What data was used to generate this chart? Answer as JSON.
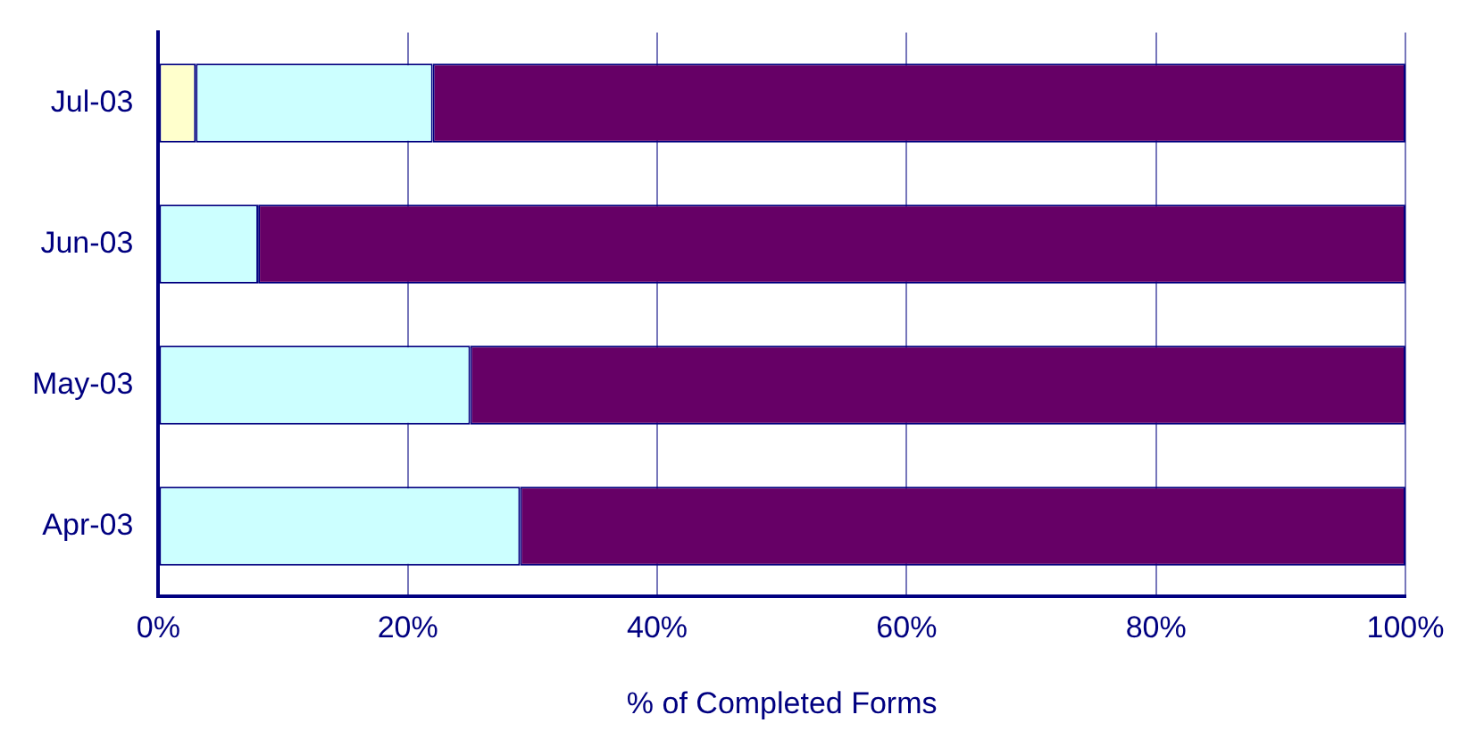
{
  "chart_data": {
    "type": "bar",
    "orientation": "horizontal",
    "stacked": true,
    "xlabel": "% of Completed Forms",
    "categories": [
      "Jul-03",
      "Jun-03",
      "May-03",
      "Apr-03"
    ],
    "series": [
      {
        "color": "#ffffcc",
        "values": [
          3,
          0,
          0,
          0
        ]
      },
      {
        "color": "#ccffff",
        "values": [
          19,
          8,
          25,
          29
        ]
      },
      {
        "color": "#660066",
        "values": [
          78,
          92,
          75,
          71
        ]
      }
    ],
    "xlim": [
      0,
      100
    ],
    "xticks": [
      {
        "value": 0,
        "label": "0%"
      },
      {
        "value": 20,
        "label": "20%"
      },
      {
        "value": 40,
        "label": "40%"
      },
      {
        "value": 60,
        "label": "60%"
      },
      {
        "value": 80,
        "label": "80%"
      },
      {
        "value": 100,
        "label": "100%"
      }
    ],
    "grid": "x",
    "legend": false
  }
}
